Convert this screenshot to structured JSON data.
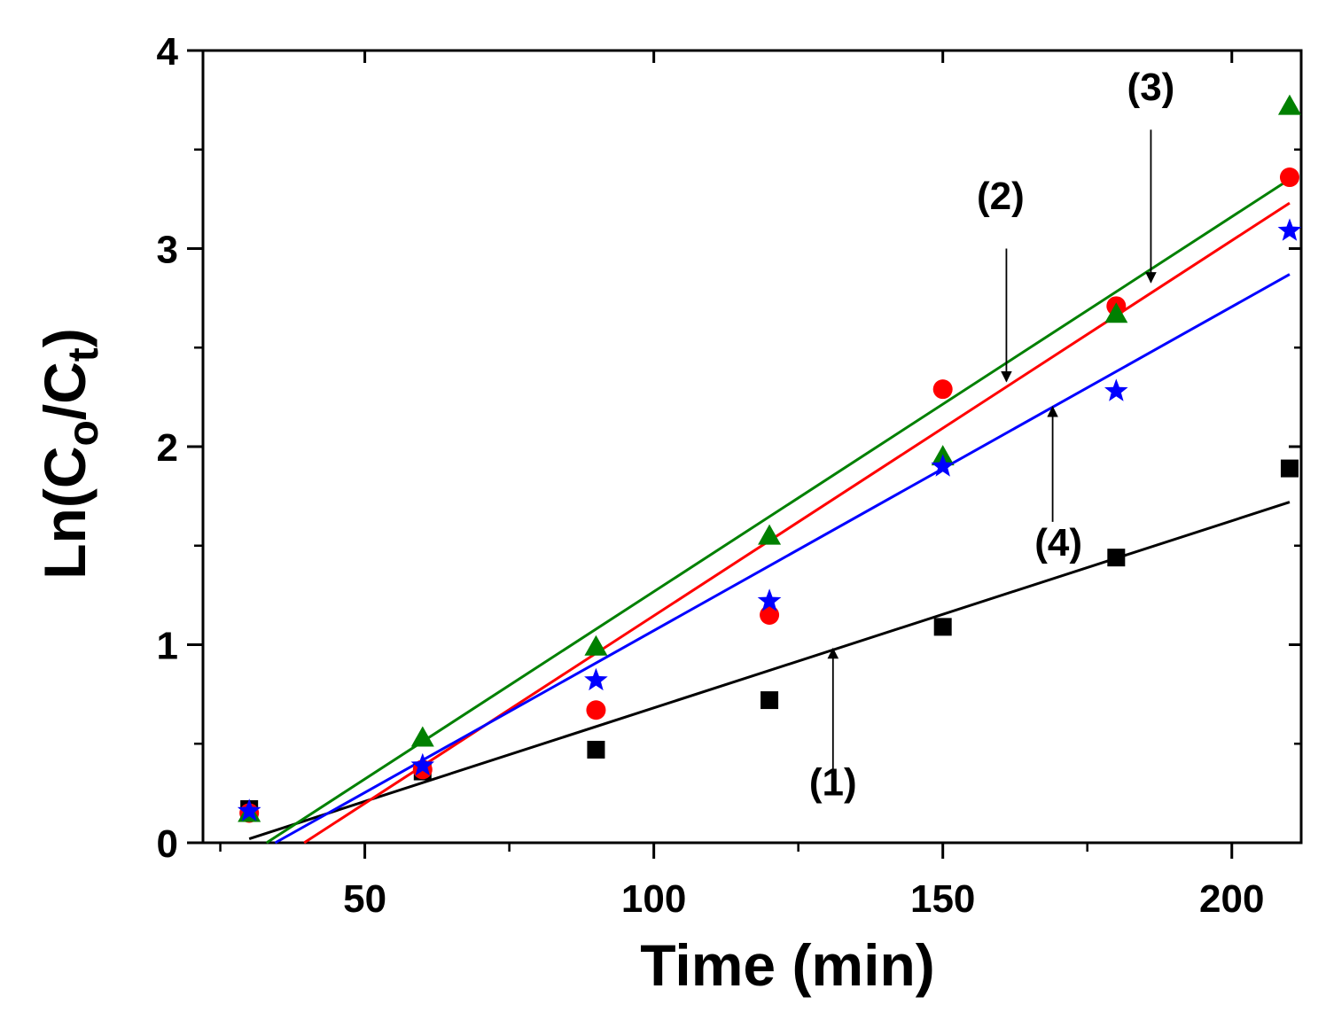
{
  "chart_data": {
    "type": "scatter",
    "xlabel": "Time (min)",
    "ylabel": {
      "main": "Ln(C",
      "sub1": "o",
      "mid": "/C",
      "sub2": "t",
      "end": ")"
    },
    "xlim": [
      22,
      212
    ],
    "ylim": [
      0,
      4
    ],
    "xticks": [
      50,
      100,
      150,
      200
    ],
    "xtick_labels": [
      "50",
      "100",
      "150",
      "200"
    ],
    "xminor": [
      25,
      75,
      125,
      175
    ],
    "yticks": [
      0,
      1,
      2,
      3,
      4
    ],
    "ytick_labels": [
      "0",
      "1",
      "2",
      "3",
      "4"
    ],
    "series": [
      {
        "name": "(1)",
        "marker": "square",
        "color": "#000000",
        "x": [
          30,
          60,
          90,
          120,
          150,
          180,
          210
        ],
        "y": [
          0.17,
          0.36,
          0.47,
          0.72,
          1.09,
          1.44,
          1.89
        ],
        "fit": {
          "x": [
            30,
            210
          ],
          "y": [
            0.02,
            1.72
          ]
        }
      },
      {
        "name": "(2)",
        "marker": "circle",
        "color": "#ff0000",
        "x": [
          30,
          60,
          90,
          120,
          150,
          180,
          210
        ],
        "y": [
          0.15,
          0.37,
          0.67,
          1.15,
          2.29,
          2.71,
          3.36
        ],
        "fit": {
          "x": [
            39.5,
            210
          ],
          "y": [
            0.0,
            3.23
          ]
        }
      },
      {
        "name": "(3)",
        "marker": "triangle",
        "color": "#008000",
        "x": [
          30,
          60,
          90,
          120,
          150,
          180,
          210
        ],
        "y": [
          0.15,
          0.53,
          0.99,
          1.55,
          1.95,
          2.67,
          3.72
        ],
        "fit": {
          "x": [
            33,
            210
          ],
          "y": [
            0.0,
            3.35
          ]
        }
      },
      {
        "name": "(4)",
        "marker": "star",
        "color": "#0000ff",
        "x": [
          30,
          60,
          90,
          120,
          150,
          180,
          210
        ],
        "y": [
          0.16,
          0.39,
          0.82,
          1.22,
          1.9,
          2.28,
          3.09
        ],
        "fit": {
          "x": [
            34.5,
            210
          ],
          "y": [
            0.0,
            2.87
          ]
        }
      }
    ],
    "annotations": [
      {
        "text": "(1)",
        "arrow_from": [
          131,
          0.28
        ],
        "arrow_to": [
          131,
          0.98
        ],
        "text_at": [
          131,
          0.24
        ]
      },
      {
        "text": "(2)",
        "arrow_from": [
          161,
          3.0
        ],
        "arrow_to": [
          161,
          2.33
        ],
        "text_at": [
          160,
          3.2
        ]
      },
      {
        "text": "(3)",
        "arrow_from": [
          186,
          3.6
        ],
        "arrow_to": [
          186,
          2.83
        ],
        "text_at": [
          186,
          3.75
        ]
      },
      {
        "text": "(4)",
        "arrow_from": [
          169,
          1.62
        ],
        "arrow_to": [
          169,
          2.2
        ],
        "text_at": [
          170,
          1.45
        ]
      }
    ]
  }
}
